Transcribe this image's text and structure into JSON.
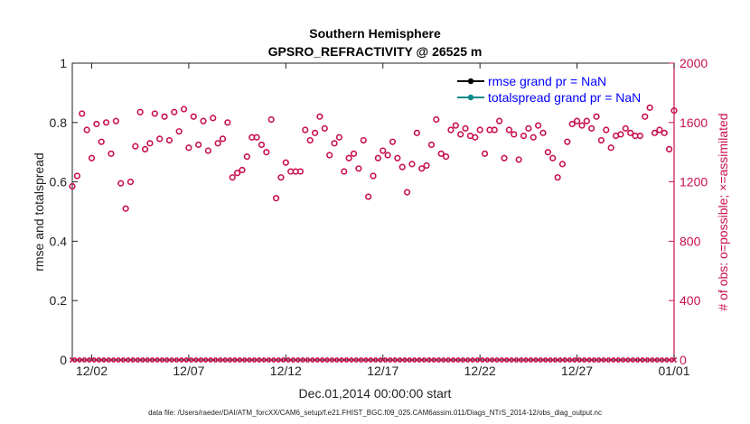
{
  "chart_data": {
    "type": "scatter",
    "title": "Southern Hemisphere",
    "subtitle": "GPSRO_REFRACTIVITY @ 26525 m",
    "xlabel": "Dec.01,2014 00:00:00 start",
    "ylabel_left": "rmse and totalspread",
    "ylabel_right": "# of obs: o=possible; ×=assimilated",
    "left_ylim": [
      0,
      1
    ],
    "right_ylim": [
      0,
      2000
    ],
    "xlim_days": [
      0,
      31
    ],
    "left_ticks": [
      "0",
      "0.2",
      "0.4",
      "0.6",
      "0.8",
      "1"
    ],
    "right_ticks": [
      "0",
      "400",
      "800",
      "1200",
      "1600",
      "2000"
    ],
    "x_ticks": [
      {
        "day": 1,
        "label": "12/02"
      },
      {
        "day": 6,
        "label": "12/07"
      },
      {
        "day": 11,
        "label": "12/12"
      },
      {
        "day": 16,
        "label": "12/17"
      },
      {
        "day": 21,
        "label": "12/22"
      },
      {
        "day": 26,
        "label": "12/27"
      },
      {
        "day": 31,
        "label": "01/01"
      }
    ],
    "legend": [
      {
        "label": "rmse grand pr = NaN",
        "color": "#000000"
      },
      {
        "label": "totalspread grand pr = NaN",
        "color": "#0f8a8a"
      }
    ],
    "colors": {
      "obs": "#c8104e",
      "axis_right": "#c8104e",
      "legend_text": "#0000ff"
    },
    "series": [
      {
        "name": "possible obs",
        "marker": "o",
        "step_days": 0.25,
        "values": [
          1170,
          1240,
          1660,
          1550,
          1360,
          1590,
          1470,
          1600,
          1390,
          1610,
          1190,
          1020,
          1200,
          1440,
          1670,
          1420,
          1460,
          1660,
          1490,
          1640,
          1480,
          1670,
          1540,
          1690,
          1430,
          1640,
          1450,
          1610,
          1410,
          1630,
          1460,
          1490,
          1600,
          1230,
          1260,
          1280,
          1370,
          1500,
          1500,
          1450,
          1400,
          1620,
          1090,
          1230,
          1330,
          1270,
          1270,
          1270,
          1550,
          1480,
          1530,
          1640,
          1560,
          1380,
          1460,
          1500,
          1270,
          1360,
          1390,
          1290,
          1480,
          1100,
          1240,
          1360,
          1410,
          1380,
          1470,
          1360,
          1300,
          1130,
          1320,
          1530,
          1290,
          1310,
          1450,
          1620,
          1390,
          1370,
          1550,
          1580,
          1520,
          1560,
          1510,
          1500,
          1550,
          1390,
          1550,
          1550,
          1610,
          1360,
          1550,
          1520,
          1350,
          1510,
          1560,
          1500,
          1580,
          1530,
          1400,
          1360,
          1230,
          1320,
          1470,
          1590,
          1610,
          1580,
          1610,
          1560,
          1640,
          1480,
          1550,
          1430,
          1510,
          1520,
          1560,
          1530,
          1510,
          1510,
          1640,
          1700,
          1530,
          1550,
          1530,
          1420,
          1680
        ]
      },
      {
        "name": "assimilated obs",
        "marker": "x",
        "step_days": 0.25,
        "values": [
          0,
          0,
          0,
          0,
          0,
          0,
          0,
          0,
          0,
          0,
          0,
          0,
          0,
          0,
          0,
          0,
          0,
          0,
          0,
          0,
          0,
          0,
          0,
          0,
          0,
          0,
          0,
          0,
          0,
          0,
          0,
          0,
          0,
          0,
          0,
          0,
          0,
          0,
          0,
          0,
          0,
          0,
          0,
          0,
          0,
          0,
          0,
          0,
          0,
          0,
          0,
          0,
          0,
          0,
          0,
          0,
          0,
          0,
          0,
          0,
          0,
          0,
          0,
          0,
          0,
          0,
          0,
          0,
          0,
          0,
          0,
          0,
          0,
          0,
          0,
          0,
          0,
          0,
          0,
          0,
          0,
          0,
          0,
          0,
          0,
          0,
          0,
          0,
          0,
          0,
          0,
          0,
          0,
          0,
          0,
          0,
          0,
          0,
          0,
          0,
          0,
          0,
          0,
          0,
          0,
          0,
          0,
          0,
          0,
          0,
          0,
          0,
          0,
          0,
          0,
          0,
          0,
          0,
          0,
          0,
          0,
          0,
          0,
          0,
          0
        ]
      }
    ]
  },
  "footer": {
    "datafile": "data file: /Users/raeder/DAI/ATM_forcXX/CAM6_setup/f.e21.FHIST_BGC.f09_025.CAM6assim.011/Diags_NTrS_2014-12/obs_diag_output.nc"
  }
}
